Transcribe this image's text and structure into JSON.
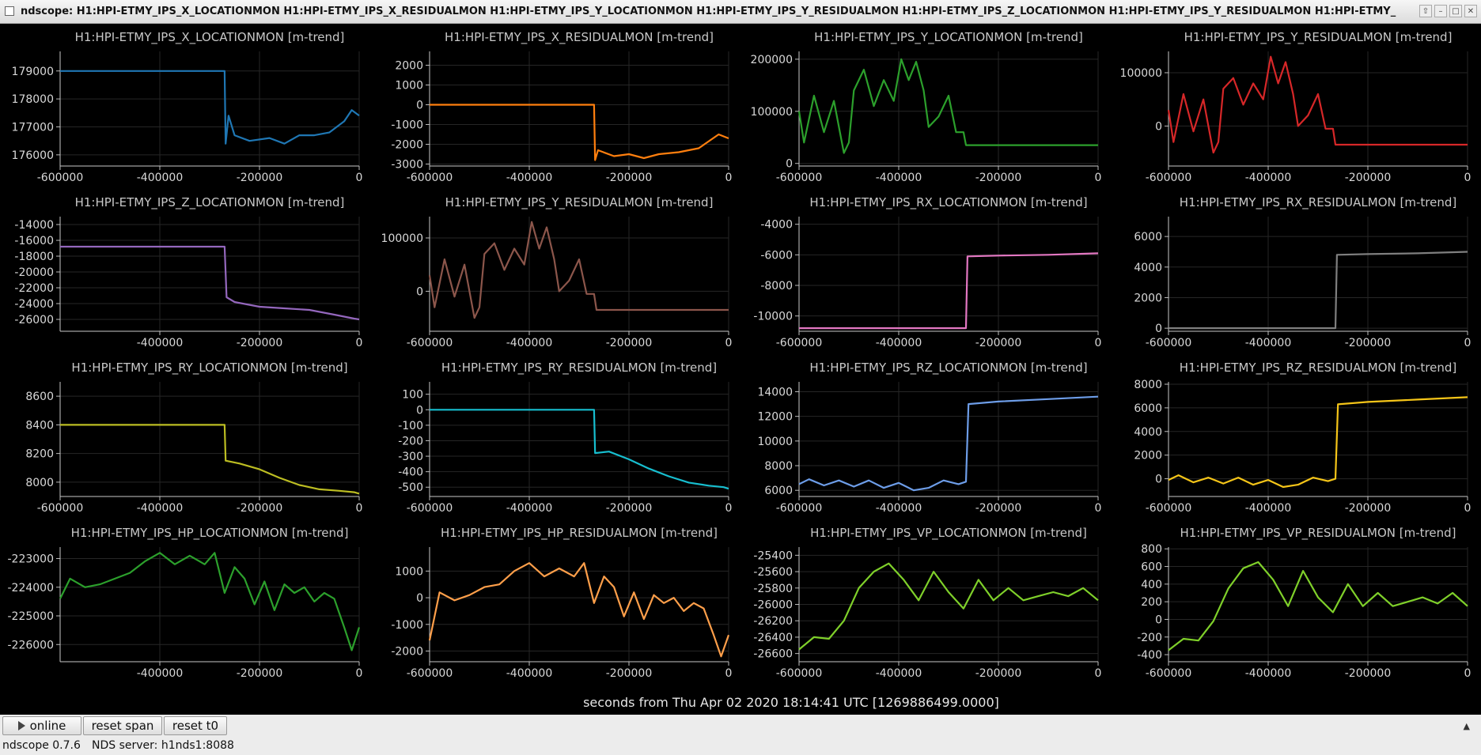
{
  "window": {
    "title": "ndscope: H1:HPI-ETMY_IPS_X_LOCATIONMON H1:HPI-ETMY_IPS_X_RESIDUALMON H1:HPI-ETMY_IPS_Y_LOCATIONMON H1:HPI-ETMY_IPS_Y_RESIDUALMON H1:HPI-ETMY_IPS_Z_LOCATIONMON H1:HPI-ETMY_IPS_Y_RESIDUALMON H1:HPI-ETMY_",
    "buttons": [
      "up-arrow-icon",
      "minimize-icon",
      "maximize-icon",
      "close-icon"
    ]
  },
  "xaxis_label": "seconds from Thu Apr 02 2020 18:14:41 UTC [1269886499.0000]",
  "toolbar": {
    "online_label": "online",
    "reset_span_label": "reset span",
    "reset_t0_label": "reset t0"
  },
  "status": {
    "version": "ndscope 0.7.6",
    "server": "NDS server: h1nds1:8088"
  },
  "chart_data": [
    {
      "type": "line",
      "title": "H1:HPI-ETMY_IPS_X_LOCATIONMON [m-trend]",
      "color": "#1f77b4",
      "xlim": [
        -600000,
        0
      ],
      "ylim": [
        175600,
        179700
      ],
      "xticks": [
        -600000,
        -400000,
        -200000,
        0
      ],
      "yticks": [
        176000,
        177000,
        178000,
        179000
      ],
      "x": [
        -600000,
        -270000,
        -268000,
        -262000,
        -250000,
        -220000,
        -180000,
        -150000,
        -120000,
        -90000,
        -60000,
        -30000,
        -15000,
        0
      ],
      "y": [
        179000,
        179000,
        176400,
        177400,
        176700,
        176500,
        176600,
        176400,
        176700,
        176700,
        176800,
        177200,
        177600,
        177400
      ]
    },
    {
      "type": "line",
      "title": "H1:HPI-ETMY_IPS_X_RESIDUALMON [m-trend]",
      "color": "#ff7f0e",
      "xlim": [
        -600000,
        0
      ],
      "ylim": [
        -3100,
        2700
      ],
      "xticks": [
        -600000,
        -400000,
        -200000,
        0
      ],
      "yticks": [
        -3000,
        -2000,
        -1000,
        0,
        1000,
        2000
      ],
      "x": [
        -600000,
        -270000,
        -268000,
        -262000,
        -230000,
        -200000,
        -170000,
        -140000,
        -100000,
        -60000,
        -20000,
        0
      ],
      "y": [
        0,
        0,
        -2800,
        -2300,
        -2600,
        -2500,
        -2700,
        -2500,
        -2400,
        -2200,
        -1500,
        -1700
      ]
    },
    {
      "type": "line",
      "title": "H1:HPI-ETMY_IPS_Y_LOCATIONMON [m-trend]",
      "color": "#2ca02c",
      "xlim": [
        -600000,
        0
      ],
      "ylim": [
        -5000,
        215000
      ],
      "xticks": [
        -600000,
        -400000,
        -200000,
        0
      ],
      "yticks": [
        0,
        100000,
        200000
      ],
      "x": [
        -600000,
        -590000,
        -570000,
        -550000,
        -530000,
        -510000,
        -500000,
        -490000,
        -470000,
        -450000,
        -430000,
        -410000,
        -395000,
        -380000,
        -365000,
        -350000,
        -340000,
        -320000,
        -300000,
        -285000,
        -270000,
        -265000,
        0
      ],
      "y": [
        100000,
        40000,
        130000,
        60000,
        120000,
        20000,
        40000,
        140000,
        180000,
        110000,
        160000,
        120000,
        200000,
        160000,
        195000,
        140000,
        70000,
        90000,
        130000,
        60000,
        60000,
        35000,
        35000
      ]
    },
    {
      "type": "line",
      "title": "H1:HPI-ETMY_IPS_Y_RESIDUALMON [m-trend]",
      "color": "#d62728",
      "xlim": [
        -600000,
        0
      ],
      "ylim": [
        -75000,
        140000
      ],
      "xticks": [
        -600000,
        -400000,
        -200000,
        0
      ],
      "yticks": [
        0,
        100000
      ],
      "x": [
        -600000,
        -590000,
        -570000,
        -550000,
        -530000,
        -510000,
        -500000,
        -490000,
        -470000,
        -450000,
        -430000,
        -410000,
        -395000,
        -380000,
        -365000,
        -350000,
        -340000,
        -320000,
        -300000,
        -285000,
        -270000,
        -265000,
        0
      ],
      "y": [
        30000,
        -30000,
        60000,
        -10000,
        50000,
        -50000,
        -30000,
        70000,
        90000,
        40000,
        80000,
        50000,
        130000,
        80000,
        120000,
        60000,
        0,
        20000,
        60000,
        -5000,
        -5000,
        -35000,
        -35000
      ]
    },
    {
      "type": "line",
      "title": "H1:HPI-ETMY_IPS_Z_LOCATIONMON [m-trend]",
      "color": "#9467bd",
      "xlim": [
        -600000,
        0
      ],
      "ylim": [
        -27500,
        -13000
      ],
      "xticks": [
        -400000,
        -200000,
        0
      ],
      "yticks": [
        -26000,
        -24000,
        -22000,
        -20000,
        -18000,
        -16000,
        -14000
      ],
      "x": [
        -600000,
        -270000,
        -266000,
        -250000,
        -200000,
        -150000,
        -100000,
        -50000,
        -10000,
        0
      ],
      "y": [
        -16800,
        -16800,
        -23200,
        -23800,
        -24400,
        -24600,
        -24800,
        -25400,
        -25900,
        -26000
      ]
    },
    {
      "type": "line",
      "title": "H1:HPI-ETMY_IPS_Y_RESIDUALMON [m-trend]",
      "color": "#8c564b",
      "xlim": [
        -600000,
        0
      ],
      "ylim": [
        -75000,
        140000
      ],
      "xticks": [
        -600000,
        -400000,
        -200000,
        0
      ],
      "yticks": [
        0,
        100000
      ],
      "x": [
        -600000,
        -590000,
        -570000,
        -550000,
        -530000,
        -510000,
        -500000,
        -490000,
        -470000,
        -450000,
        -430000,
        -410000,
        -395000,
        -380000,
        -365000,
        -350000,
        -340000,
        -320000,
        -300000,
        -285000,
        -270000,
        -265000,
        0
      ],
      "y": [
        30000,
        -30000,
        60000,
        -10000,
        50000,
        -50000,
        -30000,
        70000,
        90000,
        40000,
        80000,
        50000,
        130000,
        80000,
        120000,
        60000,
        0,
        20000,
        60000,
        -5000,
        -5000,
        -35000,
        -35000
      ]
    },
    {
      "type": "line",
      "title": "H1:HPI-ETMY_IPS_RX_LOCATIONMON [m-trend]",
      "color": "#e377c2",
      "xlim": [
        -600000,
        0
      ],
      "ylim": [
        -11000,
        -3500
      ],
      "xticks": [
        -600000,
        -400000,
        -200000,
        0
      ],
      "yticks": [
        -10000,
        -8000,
        -6000,
        -4000
      ],
      "x": [
        -600000,
        -265000,
        -262000,
        -200000,
        -100000,
        0
      ],
      "y": [
        -10800,
        -10800,
        -6100,
        -6050,
        -6000,
        -5900
      ]
    },
    {
      "type": "line",
      "title": "H1:HPI-ETMY_IPS_RX_RESIDUALMON [m-trend]",
      "color": "#7f7f7f",
      "xlim": [
        -600000,
        0
      ],
      "ylim": [
        -200,
        7300
      ],
      "xticks": [
        -600000,
        -400000,
        -200000,
        0
      ],
      "yticks": [
        0,
        2000,
        4000,
        6000
      ],
      "x": [
        -600000,
        -265000,
        -262000,
        -200000,
        -100000,
        0
      ],
      "y": [
        0,
        0,
        4800,
        4850,
        4900,
        5000
      ]
    },
    {
      "type": "line",
      "title": "H1:HPI-ETMY_IPS_RY_LOCATIONMON [m-trend]",
      "color": "#bcbd22",
      "xlim": [
        -600000,
        0
      ],
      "ylim": [
        7900,
        8700
      ],
      "xticks": [
        -600000,
        -400000,
        -200000,
        0
      ],
      "yticks": [
        8000,
        8200,
        8400,
        8600
      ],
      "x": [
        -600000,
        -270000,
        -268000,
        -240000,
        -200000,
        -160000,
        -120000,
        -80000,
        -40000,
        -10000,
        0
      ],
      "y": [
        8400,
        8400,
        8150,
        8130,
        8090,
        8030,
        7980,
        7950,
        7940,
        7930,
        7920
      ]
    },
    {
      "type": "line",
      "title": "H1:HPI-ETMY_IPS_RY_RESIDUALMON [m-trend]",
      "color": "#17becf",
      "xlim": [
        -600000,
        0
      ],
      "ylim": [
        -560,
        180
      ],
      "xticks": [
        -600000,
        -400000,
        -200000,
        0
      ],
      "yticks": [
        -500,
        -400,
        -300,
        -200,
        -100,
        0,
        100
      ],
      "x": [
        -600000,
        -270000,
        -268000,
        -240000,
        -200000,
        -160000,
        -120000,
        -80000,
        -40000,
        -10000,
        0
      ],
      "y": [
        0,
        0,
        -280,
        -270,
        -320,
        -380,
        -430,
        -470,
        -490,
        -500,
        -510
      ]
    },
    {
      "type": "line",
      "title": "H1:HPI-ETMY_IPS_RZ_LOCATIONMON [m-trend]",
      "color": "#6d9de8",
      "xlim": [
        -600000,
        0
      ],
      "ylim": [
        5500,
        14800
      ],
      "xticks": [
        -600000,
        -400000,
        -200000,
        0
      ],
      "yticks": [
        6000,
        8000,
        10000,
        12000,
        14000
      ],
      "x": [
        -600000,
        -580000,
        -550000,
        -520000,
        -490000,
        -460000,
        -430000,
        -400000,
        -370000,
        -340000,
        -310000,
        -280000,
        -265000,
        -260000,
        -200000,
        -100000,
        0
      ],
      "y": [
        6500,
        6900,
        6400,
        6800,
        6300,
        6800,
        6200,
        6600,
        6000,
        6200,
        6800,
        6500,
        6700,
        13000,
        13200,
        13400,
        13600
      ]
    },
    {
      "type": "line",
      "title": "H1:HPI-ETMY_IPS_RZ_RESIDUALMON [m-trend]",
      "color": "#f5c518",
      "xlim": [
        -600000,
        0
      ],
      "ylim": [
        -1500,
        8200
      ],
      "xticks": [
        -600000,
        -400000,
        -200000,
        0
      ],
      "yticks": [
        0,
        2000,
        4000,
        6000,
        8000
      ],
      "x": [
        -600000,
        -580000,
        -550000,
        -520000,
        -490000,
        -460000,
        -430000,
        -400000,
        -370000,
        -340000,
        -310000,
        -280000,
        -265000,
        -260000,
        -200000,
        -100000,
        0
      ],
      "y": [
        -100,
        300,
        -300,
        100,
        -400,
        100,
        -500,
        -100,
        -700,
        -500,
        100,
        -200,
        0,
        6300,
        6500,
        6700,
        6900
      ]
    },
    {
      "type": "line",
      "title": "H1:HPI-ETMY_IPS_HP_LOCATIONMON [m-trend]",
      "color": "#2ca02c",
      "xlim": [
        -600000,
        0
      ],
      "ylim": [
        -226600,
        -222600
      ],
      "xticks": [
        -400000,
        -200000,
        0
      ],
      "yticks": [
        -226000,
        -225000,
        -224000,
        -223000
      ],
      "x": [
        -600000,
        -580000,
        -550000,
        -520000,
        -490000,
        -460000,
        -430000,
        -400000,
        -370000,
        -340000,
        -310000,
        -290000,
        -270000,
        -250000,
        -230000,
        -210000,
        -190000,
        -170000,
        -150000,
        -130000,
        -110000,
        -90000,
        -70000,
        -50000,
        -30000,
        -15000,
        0
      ],
      "y": [
        -224400,
        -223700,
        -224000,
        -223900,
        -223700,
        -223500,
        -223100,
        -222800,
        -223200,
        -222900,
        -223200,
        -222800,
        -224200,
        -223300,
        -223700,
        -224600,
        -223800,
        -224800,
        -223900,
        -224200,
        -224000,
        -224500,
        -224200,
        -224400,
        -225400,
        -226200,
        -225400
      ]
    },
    {
      "type": "line",
      "title": "H1:HPI-ETMY_IPS_HP_RESIDUALMON [m-trend]",
      "color": "#ff9f4a",
      "xlim": [
        -600000,
        0
      ],
      "ylim": [
        -2400,
        1900
      ],
      "xticks": [
        -600000,
        -400000,
        -200000,
        0
      ],
      "yticks": [
        -2000,
        -1000,
        0,
        1000
      ],
      "x": [
        -600000,
        -580000,
        -550000,
        -520000,
        -490000,
        -460000,
        -430000,
        -400000,
        -370000,
        -340000,
        -310000,
        -290000,
        -270000,
        -250000,
        -230000,
        -210000,
        -190000,
        -170000,
        -150000,
        -130000,
        -110000,
        -90000,
        -70000,
        -50000,
        -30000,
        -15000,
        0
      ],
      "y": [
        -1600,
        200,
        -100,
        100,
        400,
        500,
        1000,
        1300,
        800,
        1100,
        800,
        1300,
        -200,
        800,
        400,
        -700,
        200,
        -800,
        100,
        -200,
        0,
        -500,
        -200,
        -400,
        -1400,
        -2200,
        -1400
      ]
    },
    {
      "type": "line",
      "title": "H1:HPI-ETMY_IPS_VP_LOCATIONMON [m-trend]",
      "color": "#7fd02a",
      "xlim": [
        -600000,
        0
      ],
      "ylim": [
        -26700,
        -25300
      ],
      "xticks": [
        -600000,
        -400000,
        -200000,
        0
      ],
      "yticks": [
        -26600,
        -26400,
        -26200,
        -26000,
        -25800,
        -25600,
        -25400
      ],
      "x": [
        -600000,
        -570000,
        -540000,
        -510000,
        -480000,
        -450000,
        -420000,
        -390000,
        -360000,
        -330000,
        -300000,
        -270000,
        -240000,
        -210000,
        -180000,
        -150000,
        -120000,
        -90000,
        -60000,
        -30000,
        0
      ],
      "y": [
        -26550,
        -26400,
        -26420,
        -26200,
        -25800,
        -25600,
        -25500,
        -25700,
        -25950,
        -25600,
        -25850,
        -26050,
        -25700,
        -25950,
        -25800,
        -25950,
        -25900,
        -25850,
        -25900,
        -25800,
        -25950
      ]
    },
    {
      "type": "line",
      "title": "H1:HPI-ETMY_IPS_VP_RESIDUALMON [m-trend]",
      "color": "#7fd02a",
      "xlim": [
        -600000,
        0
      ],
      "ylim": [
        -480,
        820
      ],
      "xticks": [
        -600000,
        -400000,
        -200000,
        0
      ],
      "yticks": [
        -400,
        -200,
        0,
        200,
        400,
        600,
        800
      ],
      "x": [
        -600000,
        -570000,
        -540000,
        -510000,
        -480000,
        -450000,
        -420000,
        -390000,
        -360000,
        -330000,
        -300000,
        -270000,
        -240000,
        -210000,
        -180000,
        -150000,
        -120000,
        -90000,
        -60000,
        -30000,
        0
      ],
      "y": [
        -350,
        -220,
        -240,
        -20,
        350,
        580,
        650,
        450,
        150,
        550,
        250,
        80,
        400,
        150,
        300,
        150,
        200,
        250,
        180,
        300,
        150
      ]
    }
  ]
}
